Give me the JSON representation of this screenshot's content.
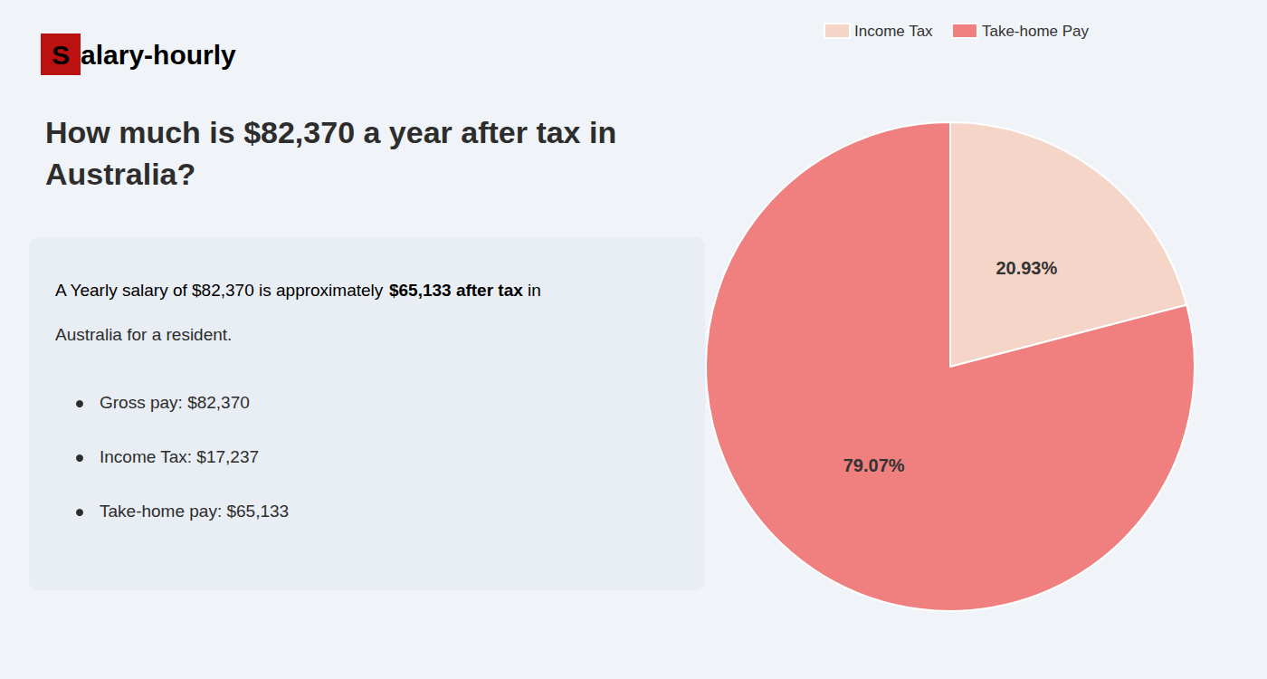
{
  "chart_data": {
    "type": "pie",
    "title": "How much is $82,370 a year after tax in Australia?",
    "categories": [
      "Income Tax",
      "Take-home Pay"
    ],
    "values": [
      20.93,
      79.07
    ],
    "value_labels": [
      "20.93%",
      "79.07%"
    ],
    "colors": [
      "#f5d5c8",
      "#f08080"
    ],
    "data_labels": true,
    "legend": "top",
    "annotations": [
      [
        {
          "text": "S",
          "color": "#bb1111"
        },
        {
          "text": "alary-hourly",
          "color": "#111111"
        }
      ],
      [
        {
          "text": "A Yearly salary of $82,370 is approximately ",
          "color": "#2d2d2d"
        },
        {
          "text": "$65,133 after tax",
          "color": "#cc1111"
        },
        {
          "text": " in",
          "color": "#2d2d2d"
        }
      ],
      "Australia for a resident.",
      "Gross pay: $82,370",
      "Income Tax: $17,237",
      "Take-home pay: $65,133"
    ]
  }
}
